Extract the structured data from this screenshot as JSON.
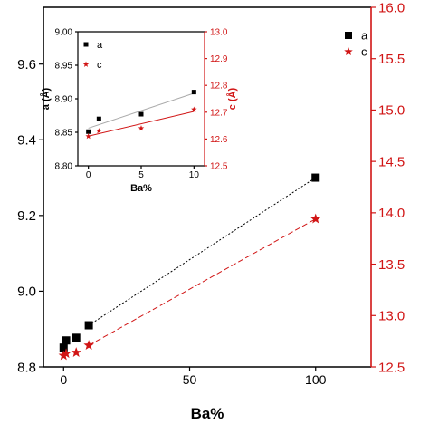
{
  "chart_data": [
    {
      "type": "scatter",
      "role": "main",
      "xlabel": "Ba%",
      "x_ticks": [
        0,
        50,
        100
      ],
      "xlim": [
        -8,
        122
      ],
      "left_axis": {
        "label": "",
        "ylim": [
          8.8,
          9.75
        ],
        "ticks": [
          8.8,
          9.0,
          9.2,
          9.4,
          9.6
        ],
        "color": "#000000"
      },
      "right_axis": {
        "label": "",
        "ylim": [
          12.5,
          16.0
        ],
        "ticks": [
          12.5,
          13.0,
          13.5,
          14.0,
          14.5,
          15.0,
          15.5,
          16.0
        ],
        "color": "#d11515"
      },
      "series": [
        {
          "name": "a",
          "axis": "left",
          "marker": "square",
          "color": "#000000",
          "line": "dotted",
          "x": [
            0,
            1,
            5,
            10,
            100
          ],
          "y": [
            8.851,
            8.87,
            8.877,
            8.91,
            9.3
          ]
        },
        {
          "name": "c",
          "axis": "right",
          "marker": "star",
          "color": "#d11515",
          "line": "dashed",
          "x": [
            0,
            1,
            5,
            10,
            100
          ],
          "y": [
            12.61,
            12.63,
            12.64,
            12.71,
            13.94
          ]
        }
      ],
      "legend": "top-right",
      "grid": false
    },
    {
      "type": "scatter",
      "role": "inset",
      "xlabel": "Ba%",
      "x_ticks": [
        0,
        5,
        10
      ],
      "xlim": [
        -1,
        11
      ],
      "left_axis": {
        "label": "a (Å)",
        "ylim": [
          8.8,
          9.0
        ],
        "ticks": [
          8.8,
          8.85,
          8.9,
          8.95,
          9.0
        ],
        "tick_labels": [
          "8.80",
          "8.85",
          "8.90",
          "8.95",
          "9.00"
        ],
        "color": "#000000"
      },
      "right_axis": {
        "label": "c (Å)",
        "ylim": [
          12.5,
          13.0
        ],
        "ticks": [
          12.5,
          12.6,
          12.7,
          12.8,
          12.9,
          13.0
        ],
        "tick_labels": [
          "12.5",
          "12.6",
          "12.7",
          "12.8",
          "12.9",
          "13.0"
        ],
        "color": "#d11515"
      },
      "series": [
        {
          "name": "a",
          "axis": "left",
          "marker": "square",
          "color": "#000000",
          "fit_color": "#aaaaaa",
          "x": [
            0,
            1,
            5,
            10
          ],
          "y": [
            8.851,
            8.87,
            8.877,
            8.91
          ]
        },
        {
          "name": "c",
          "axis": "right",
          "marker": "star",
          "color": "#d11515",
          "fit_color": "#d11515",
          "x": [
            0,
            1,
            5,
            10
          ],
          "y": [
            12.61,
            12.63,
            12.64,
            12.71
          ]
        }
      ],
      "legend": "top-left",
      "grid": false
    }
  ]
}
